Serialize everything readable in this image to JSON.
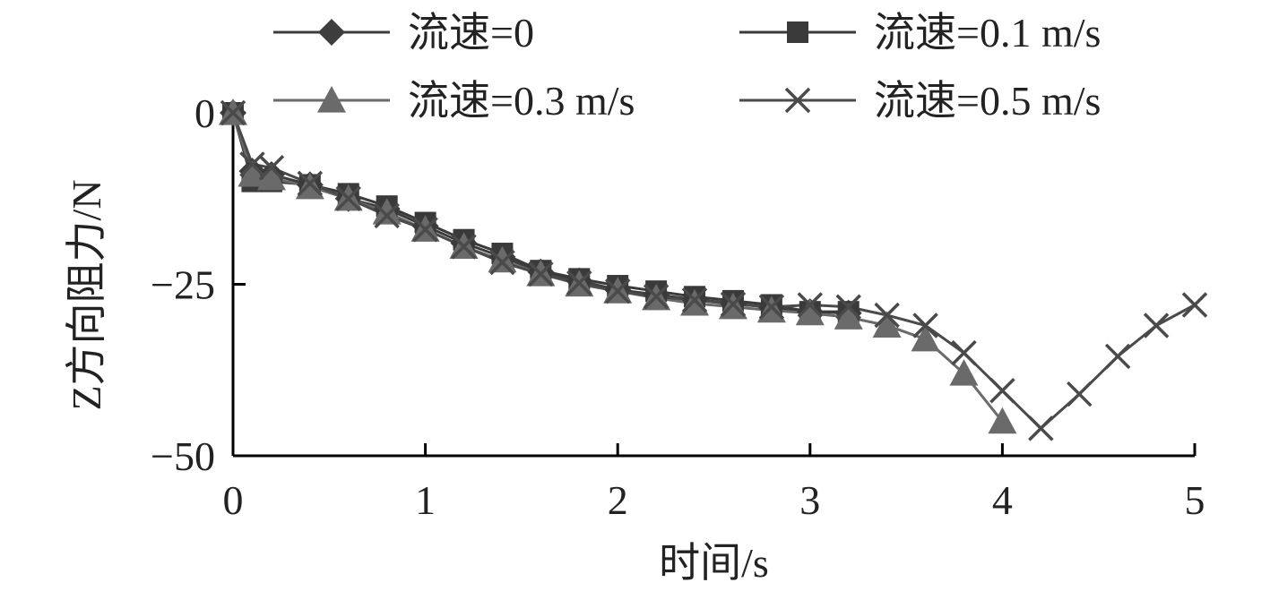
{
  "chart_data": {
    "type": "line",
    "title": "",
    "xlabel": "时间/s",
    "ylabel": "Z方向阻力/N",
    "xlim": [
      0,
      5
    ],
    "ylim": [
      -50,
      0
    ],
    "xticks": [
      "0",
      "1",
      "2",
      "3",
      "4",
      "5"
    ],
    "yticks": [
      "0",
      "−25",
      "−50"
    ],
    "grid": false,
    "legend_position": "top",
    "series": [
      {
        "name": "流速=0",
        "marker": "diamond",
        "color": "#3d3d3d",
        "points": [
          [
            0,
            0
          ],
          [
            0.1,
            -8.5
          ],
          [
            0.2,
            -9
          ],
          [
            0.4,
            -10.5
          ],
          [
            0.6,
            -12.5
          ],
          [
            0.8,
            -14
          ],
          [
            1.0,
            -16.5
          ],
          [
            1.2,
            -19
          ],
          [
            1.4,
            -21
          ],
          [
            1.6,
            -23.2
          ],
          [
            1.8,
            -24.5
          ],
          [
            2.0,
            -25.8
          ],
          [
            2.2,
            -26.5
          ],
          [
            2.4,
            -27.2
          ],
          [
            2.6,
            -27.8
          ],
          [
            2.8,
            -28.4
          ],
          [
            3.0,
            -29
          ],
          [
            3.2,
            -29.2
          ]
        ]
      },
      {
        "name": "流速=0.1 m/s",
        "marker": "square",
        "color": "#3a3a3a",
        "points": [
          [
            0,
            0
          ],
          [
            0.1,
            -10
          ],
          [
            0.2,
            -10
          ],
          [
            0.4,
            -10.5
          ],
          [
            0.6,
            -11.8
          ],
          [
            0.8,
            -13.6
          ],
          [
            1.0,
            -16
          ],
          [
            1.2,
            -18.5
          ],
          [
            1.4,
            -20.5
          ],
          [
            1.6,
            -23
          ],
          [
            1.8,
            -24.2
          ],
          [
            2.0,
            -25.2
          ],
          [
            2.2,
            -26
          ],
          [
            2.4,
            -26.8
          ],
          [
            2.6,
            -27.4
          ],
          [
            2.8,
            -28
          ],
          [
            3.0,
            -29
          ],
          [
            3.2,
            -29
          ]
        ]
      },
      {
        "name": "流速=0.3 m/s",
        "marker": "triangle",
        "color": "#6a6a6a",
        "points": [
          [
            0,
            0
          ],
          [
            0.1,
            -9
          ],
          [
            0.2,
            -9.5
          ],
          [
            0.4,
            -10.8
          ],
          [
            0.6,
            -12.5
          ],
          [
            0.8,
            -14.5
          ],
          [
            1.0,
            -17
          ],
          [
            1.2,
            -19.5
          ],
          [
            1.4,
            -21.5
          ],
          [
            1.6,
            -23.5
          ],
          [
            1.8,
            -25
          ],
          [
            2.0,
            -26
          ],
          [
            2.2,
            -27
          ],
          [
            2.4,
            -27.8
          ],
          [
            2.6,
            -28.3
          ],
          [
            2.8,
            -28.8
          ],
          [
            3.0,
            -29.2
          ],
          [
            3.2,
            -29.8
          ],
          [
            3.4,
            -31
          ],
          [
            3.6,
            -33
          ],
          [
            3.8,
            -38
          ],
          [
            4.0,
            -45
          ]
        ]
      },
      {
        "name": "流速=0.5 m/s",
        "marker": "x",
        "color": "#4a4a4a",
        "points": [
          [
            0,
            0
          ],
          [
            0.1,
            -7.5
          ],
          [
            0.2,
            -8
          ],
          [
            0.4,
            -10.3
          ],
          [
            0.6,
            -12.5
          ],
          [
            0.8,
            -15
          ],
          [
            1.0,
            -17
          ],
          [
            1.2,
            -19.5
          ],
          [
            1.4,
            -21.8
          ],
          [
            1.6,
            -23.5
          ],
          [
            1.8,
            -24.8
          ],
          [
            2.0,
            -26
          ],
          [
            2.2,
            -26.8
          ],
          [
            2.4,
            -27.3
          ],
          [
            2.6,
            -27.9
          ],
          [
            2.8,
            -28.3
          ],
          [
            3.0,
            -28
          ],
          [
            3.2,
            -28.3
          ],
          [
            3.4,
            -29.5
          ],
          [
            3.6,
            -31
          ],
          [
            3.8,
            -35
          ],
          [
            4.0,
            -40.5
          ],
          [
            4.2,
            -46
          ],
          [
            4.4,
            -41
          ],
          [
            4.6,
            -35.5
          ],
          [
            4.8,
            -31
          ],
          [
            5.0,
            -28
          ]
        ]
      }
    ]
  }
}
